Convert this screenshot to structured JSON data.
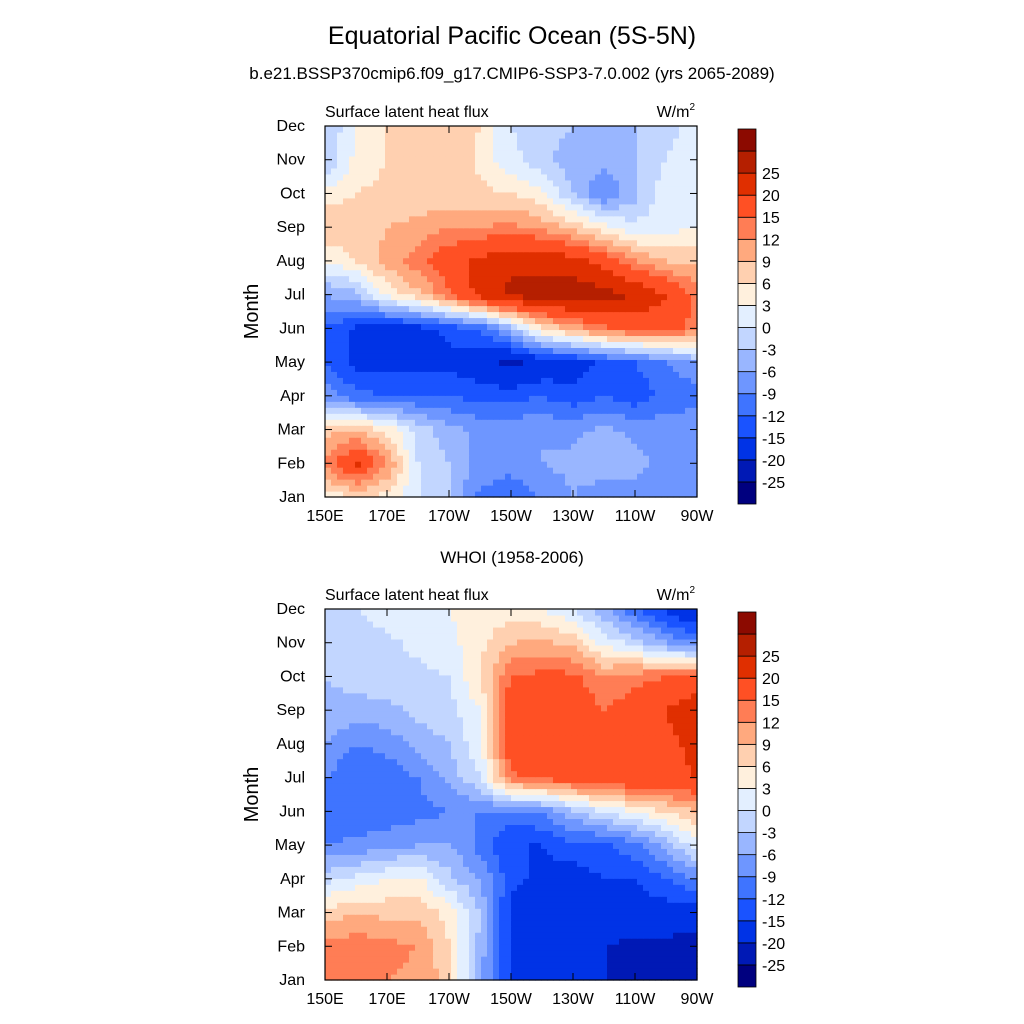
{
  "title": "Equatorial Pacific Ocean (5S-5N)",
  "subtitle": "b.e21.BSSP370cmip6.f09_g17.CMIP6-SSP3-7.0.002 (yrs 2065-2089)",
  "second_title": "WHOI (1958-2006)",
  "colors": [
    "#00007f",
    "#0019b5",
    "#0033e6",
    "#1a53ff",
    "#3f74ff",
    "#6e96ff",
    "#99b6ff",
    "#c2d6ff",
    "#e3efff",
    "#fff0dd",
    "#ffd0b0",
    "#ffa97e",
    "#ff7d55",
    "#ff5024",
    "#e02f00",
    "#b51f00",
    "#8c0a00"
  ],
  "chart_data": [
    {
      "type": "heatmap",
      "panel": "top",
      "left_label": "Surface latent heat flux",
      "units_label": "W/m",
      "units_exp": "2",
      "ylabel": "Month",
      "x": [
        150,
        160,
        170,
        180,
        190,
        200,
        210,
        220,
        230,
        240,
        250,
        260,
        270
      ],
      "x_ticks": [
        "150E",
        "170E",
        "170W",
        "150W",
        "130W",
        "110W",
        "90W"
      ],
      "y_ticks": [
        "Jan",
        "Feb",
        "Mar",
        "Apr",
        "May",
        "Jun",
        "Jul",
        "Aug",
        "Sep",
        "Oct",
        "Nov",
        "Dec"
      ],
      "levels": [
        -25,
        -20,
        -15,
        -12,
        -9,
        -6,
        -3,
        0,
        3,
        6,
        9,
        12,
        15,
        20,
        25
      ],
      "values": [
        [
          4,
          6,
          5,
          0,
          -3,
          -10,
          -11,
          -9,
          -6,
          -8,
          -7,
          -9,
          -8
        ],
        [
          12,
          21,
          12,
          0,
          -3,
          -7,
          -8,
          -6,
          -5,
          -4,
          -5,
          -7,
          -7
        ],
        [
          8,
          9,
          5,
          -1,
          -5,
          -7,
          -7,
          -6,
          -7,
          -5,
          -7,
          -7,
          -6
        ],
        [
          -7,
          -11,
          -12,
          -12,
          -12,
          -13,
          -13,
          -12,
          -14,
          -12,
          -14,
          -11,
          -11
        ],
        [
          -12,
          -16,
          -16,
          -16,
          -16,
          -18,
          -21,
          -18,
          -17,
          -14,
          -12,
          -9,
          -6
        ],
        [
          -12,
          -16,
          -18,
          -17,
          -14,
          -12,
          -4,
          6,
          10,
          14,
          16,
          16,
          14
        ],
        [
          -6,
          -4,
          4,
          8,
          14,
          22,
          26,
          27,
          28,
          27,
          25,
          20,
          14
        ],
        [
          3,
          6,
          10,
          14,
          18,
          21,
          24,
          24,
          22,
          18,
          12,
          9,
          8
        ],
        [
          9,
          8,
          9,
          10,
          12,
          12,
          13,
          11,
          8,
          4,
          1,
          2,
          3
        ],
        [
          4,
          6,
          7,
          7,
          7,
          7,
          6,
          4,
          -3,
          -9,
          -4,
          2,
          3
        ],
        [
          -3,
          4,
          6,
          9,
          9,
          5,
          1,
          -2,
          -5,
          -5,
          -3,
          0,
          3
        ],
        [
          -3,
          3,
          6,
          7,
          8,
          6,
          0,
          -1,
          -3,
          -4,
          -3,
          -1,
          1
        ]
      ]
    },
    {
      "type": "heatmap",
      "panel": "bottom",
      "left_label": "Surface latent heat flux",
      "units_label": "W/m",
      "units_exp": "2",
      "ylabel": "Month",
      "x": [
        150,
        160,
        170,
        180,
        190,
        200,
        210,
        220,
        230,
        240,
        250,
        260,
        270
      ],
      "x_ticks": [
        "150E",
        "170E",
        "170W",
        "150W",
        "130W",
        "110W",
        "90W"
      ],
      "y_ticks": [
        "Jan",
        "Feb",
        "Mar",
        "Apr",
        "May",
        "Jun",
        "Jul",
        "Aug",
        "Sep",
        "Oct",
        "Nov",
        "Dec"
      ],
      "levels": [
        -25,
        -20,
        -15,
        -12,
        -9,
        -6,
        -3,
        0,
        3,
        6,
        9,
        12,
        15,
        20,
        25
      ],
      "values": [
        [
          13,
          14,
          12,
          11,
          8,
          -6,
          -15,
          -18,
          -18,
          -20,
          -21,
          -22,
          -25
        ],
        [
          13,
          14,
          13,
          12,
          6,
          -4,
          -16,
          -18,
          -17,
          -20,
          -21,
          -21,
          -22
        ],
        [
          7,
          9,
          8,
          8,
          5,
          -3,
          -16,
          -17,
          -16,
          -18,
          -17,
          -17,
          -18
        ],
        [
          -1,
          1,
          3,
          4,
          -2,
          -6,
          -14,
          -16,
          -17,
          -15,
          -15,
          -12,
          -9
        ],
        [
          -9,
          -8,
          -7,
          -6,
          -6,
          -10,
          -15,
          -15,
          -13,
          -13,
          -10,
          -5,
          2
        ],
        [
          -12,
          -12,
          -11,
          -10,
          -9,
          -9,
          -10,
          -9,
          -4,
          0,
          3,
          6,
          9
        ],
        [
          -9,
          -12,
          -11,
          -9,
          -5,
          0,
          14,
          16,
          17,
          19,
          19,
          19,
          20
        ],
        [
          -6,
          -9,
          -8,
          -5,
          -3,
          2,
          18,
          20,
          19,
          18,
          19,
          19,
          21
        ],
        [
          -4,
          -4,
          -4,
          -2,
          -1,
          3,
          18,
          19,
          18,
          15,
          17,
          20,
          24
        ],
        [
          -3,
          -2,
          -1,
          -1,
          0,
          6,
          15,
          16,
          16,
          12,
          14,
          15,
          16
        ],
        [
          -2,
          -2,
          -1,
          1,
          2,
          5,
          9,
          10,
          8,
          2,
          -1,
          -6,
          -9
        ],
        [
          -1,
          0,
          2,
          3,
          3,
          5,
          4,
          3,
          0,
          -5,
          -12,
          -16,
          -20
        ]
      ]
    }
  ]
}
